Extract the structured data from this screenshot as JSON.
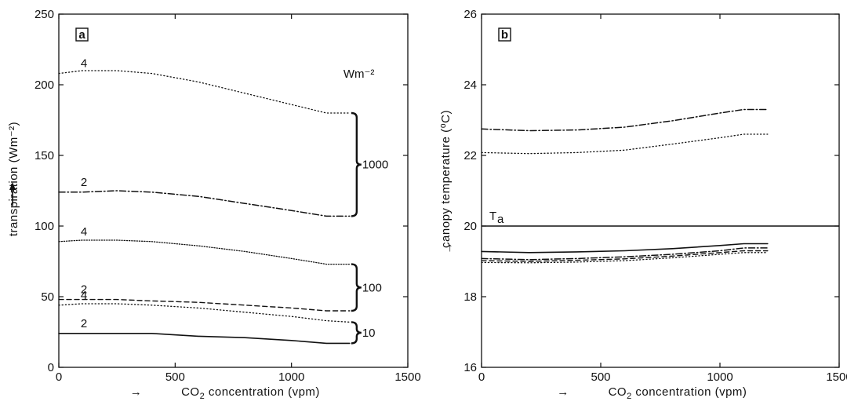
{
  "chart_data": [
    {
      "type": "line",
      "panel": "a",
      "xlabel_arrow": "→",
      "xlabel": "CO₂ concentration (vpm)",
      "ylabel": "transpiration (Wm⁻²)",
      "xlim": [
        0,
        1500
      ],
      "ylim": [
        0,
        250
      ],
      "xticks": [
        0,
        500,
        1000,
        1500
      ],
      "yticks": [
        0,
        50,
        100,
        150,
        200,
        250
      ],
      "grid": false,
      "bracket_unit": "Wm⁻²",
      "groups": [
        {
          "label": "1000",
          "y_range": [
            107,
            180
          ]
        },
        {
          "label": "100",
          "y_range": [
            40,
            73
          ]
        },
        {
          "label": "10",
          "y_range": [
            17,
            32
          ]
        }
      ],
      "series": [
        {
          "curve_label": "4",
          "style": "dotted",
          "x": [
            0,
            100,
            250,
            400,
            600,
            800,
            1000,
            1150,
            1250
          ],
          "y": [
            208,
            210,
            210,
            208,
            202,
            194,
            186,
            180,
            180
          ]
        },
        {
          "curve_label": "2",
          "style": "dashdot",
          "x": [
            0,
            100,
            250,
            400,
            600,
            800,
            1000,
            1150,
            1250
          ],
          "y": [
            124,
            124,
            125,
            124,
            121,
            116,
            111,
            107,
            107
          ]
        },
        {
          "curve_label": "4",
          "style": "densedot",
          "x": [
            0,
            100,
            250,
            400,
            600,
            800,
            1000,
            1150,
            1250
          ],
          "y": [
            89,
            90,
            90,
            89,
            86,
            82,
            77,
            73,
            73
          ]
        },
        {
          "curve_label": "2",
          "style": "dashed",
          "x": [
            0,
            100,
            250,
            400,
            600,
            800,
            1000,
            1150,
            1250
          ],
          "y": [
            48,
            48,
            48,
            47,
            46,
            44,
            42,
            40,
            40
          ]
        },
        {
          "curve_label": "4",
          "style": "dotted",
          "x": [
            0,
            100,
            250,
            400,
            600,
            800,
            1000,
            1150,
            1250
          ],
          "y": [
            44,
            45,
            45,
            44,
            42,
            39,
            36,
            33,
            32
          ]
        },
        {
          "curve_label": "2",
          "style": "solid",
          "x": [
            0,
            100,
            250,
            400,
            600,
            800,
            1000,
            1150,
            1250
          ],
          "y": [
            24,
            24,
            24,
            24,
            22,
            21,
            19,
            17,
            17
          ]
        }
      ]
    },
    {
      "type": "line",
      "panel": "b",
      "xlabel_arrow": "→",
      "xlabel": "CO₂ concentration (vpm)",
      "ylabel_arrow": "↑",
      "ylabel": "canopy temperature (⁰C)",
      "xlim": [
        0,
        1500
      ],
      "ylim": [
        16,
        26
      ],
      "xticks": [
        0,
        500,
        1000,
        1500
      ],
      "yticks": [
        16,
        18,
        20,
        22,
        24,
        26
      ],
      "grid": false,
      "reference_line": {
        "label": "T",
        "label_sub": "a",
        "y": 20
      },
      "series": [
        {
          "style": "dashdot",
          "x": [
            0,
            200,
            400,
            600,
            800,
            1000,
            1100,
            1200
          ],
          "y": [
            22.75,
            22.7,
            22.72,
            22.8,
            22.98,
            23.2,
            23.3,
            23.3
          ]
        },
        {
          "style": "dotted",
          "x": [
            0,
            200,
            400,
            600,
            800,
            1000,
            1100,
            1200
          ],
          "y": [
            22.08,
            22.05,
            22.08,
            22.15,
            22.32,
            22.5,
            22.6,
            22.6
          ]
        },
        {
          "style": "solid",
          "x": [
            0,
            200,
            400,
            600,
            800,
            1000,
            1100,
            1200
          ],
          "y": [
            19.28,
            19.25,
            19.27,
            19.3,
            19.36,
            19.45,
            19.5,
            19.5
          ]
        },
        {
          "style": "dashdot",
          "x": [
            0,
            200,
            400,
            600,
            800,
            1000,
            1100,
            1200
          ],
          "y": [
            19.08,
            19.05,
            19.08,
            19.13,
            19.2,
            19.3,
            19.38,
            19.38
          ]
        },
        {
          "style": "dashed",
          "x": [
            0,
            200,
            400,
            600,
            800,
            1000,
            1100,
            1200
          ],
          "y": [
            19.02,
            19.0,
            19.03,
            19.07,
            19.15,
            19.25,
            19.3,
            19.3
          ]
        },
        {
          "style": "dotted",
          "x": [
            0,
            200,
            400,
            600,
            800,
            1000,
            1100,
            1200
          ],
          "y": [
            18.97,
            18.96,
            18.98,
            19.02,
            19.1,
            19.2,
            19.25,
            19.25
          ]
        }
      ]
    }
  ]
}
